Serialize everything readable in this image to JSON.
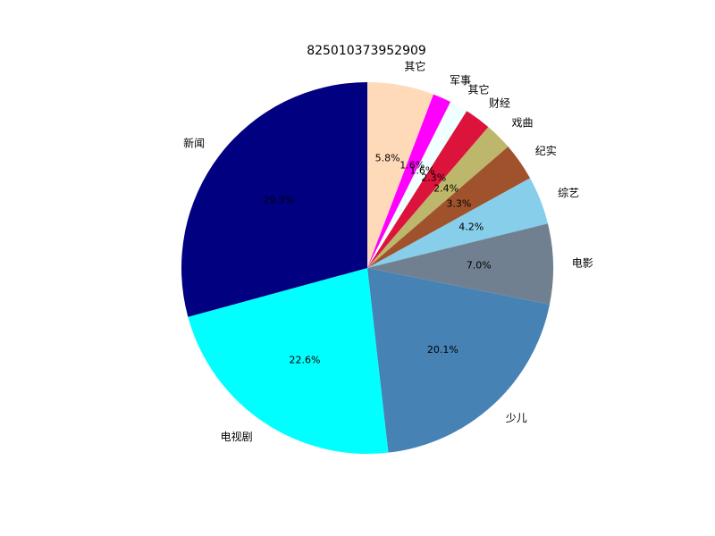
{
  "chart_data": {
    "type": "pie",
    "title": "825010373952909",
    "start_angle_deg": 90,
    "direction": "clockwise",
    "slices": [
      {
        "label": "其它",
        "pct": "5.8%",
        "value": 5.8,
        "color": "#ffdab9"
      },
      {
        "label": "军事",
        "pct": "1.6%",
        "value": 1.6,
        "color": "#ff00ff"
      },
      {
        "label": "其它",
        "pct": "1.6%",
        "value": 1.6,
        "color": "#f0ffff"
      },
      {
        "label": "财经",
        "pct": "2.3%",
        "value": 2.3,
        "color": "#dc143c"
      },
      {
        "label": "戏曲",
        "pct": "2.4%",
        "value": 2.4,
        "color": "#bdb76b"
      },
      {
        "label": "纪实",
        "pct": "3.3%",
        "value": 3.3,
        "color": "#a0522d"
      },
      {
        "label": "综艺",
        "pct": "4.2%",
        "value": 4.2,
        "color": "#87ceeb"
      },
      {
        "label": "电影",
        "pct": "7.0%",
        "value": 7.0,
        "color": "#708090"
      },
      {
        "label": "少儿",
        "pct": "20.1%",
        "value": 20.1,
        "color": "#4682b4"
      },
      {
        "label": "电视剧",
        "pct": "22.6%",
        "value": 22.6,
        "color": "#00ffff"
      },
      {
        "label": "新闻",
        "pct": "29.3%",
        "value": 29.3,
        "color": "#000080"
      }
    ]
  }
}
